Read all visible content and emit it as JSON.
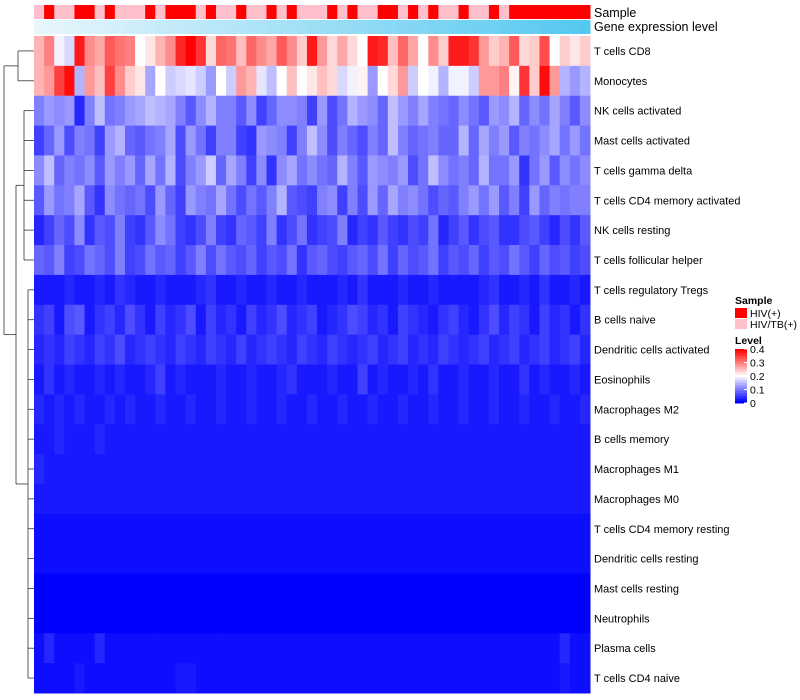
{
  "chart_data": {
    "type": "heatmap",
    "annotation_bars": {
      "sample_label": "Sample",
      "expression_label": "Gene expression level"
    },
    "rows": [
      "T cells CD8",
      "Monocytes",
      "NK cells activated",
      "Mast cells activated",
      "T cells gamma delta",
      "T cells CD4 memory activated",
      "NK cells resting",
      "T cells follicular helper",
      "T cells regulatory  Tregs",
      "B cells naive",
      "Dendritic cells activated",
      "Eosinophils",
      "Macrophages M2",
      "B cells memory",
      "Macrophages M1",
      "Macrophages M0",
      "T cells CD4 memory resting",
      "Dendritic cells resting",
      "Mast cells resting",
      "Neutrophils",
      "Plasma cells",
      "T cells CD4 naive"
    ],
    "sample_groups": [
      "HIV(+)",
      "HIV/TB(+)"
    ],
    "sample_assignment": [
      1,
      0,
      1,
      1,
      0,
      0,
      1,
      0,
      1,
      1,
      1,
      0,
      1,
      0,
      0,
      0,
      1,
      0,
      1,
      1,
      0,
      1,
      1,
      0,
      1,
      0,
      1,
      1,
      1,
      0,
      1,
      0,
      1,
      1,
      0,
      0,
      1,
      0,
      1,
      0,
      1,
      1,
      0,
      1,
      1,
      0,
      1,
      0,
      0,
      0,
      0,
      0,
      0,
      0,
      0
    ],
    "values_range_note": "cell fractions",
    "values": [
      [
        0.26,
        0.3,
        0.19,
        0.17,
        0.38,
        0.29,
        0.27,
        0.33,
        0.31,
        0.3,
        0.2,
        0.22,
        0.26,
        0.29,
        0.37,
        0.4,
        0.36,
        0.23,
        0.32,
        0.31,
        0.25,
        0.32,
        0.29,
        0.27,
        0.33,
        0.29,
        0.24,
        0.38,
        0.28,
        0.23,
        0.27,
        0.23,
        0.2,
        0.38,
        0.37,
        0.25,
        0.32,
        0.27,
        0.2,
        0.29,
        0.24,
        0.38,
        0.38,
        0.36,
        0.28,
        0.24,
        0.26,
        0.33,
        0.23,
        0.24,
        0.34,
        0.2,
        0.24,
        0.22,
        0.24
      ],
      [
        0.26,
        0.28,
        0.35,
        0.39,
        0.14,
        0.28,
        0.25,
        0.35,
        0.29,
        0.24,
        0.22,
        0.13,
        0.2,
        0.16,
        0.17,
        0.18,
        0.16,
        0.12,
        0.2,
        0.16,
        0.28,
        0.26,
        0.18,
        0.15,
        0.2,
        0.25,
        0.2,
        0.22,
        0.25,
        0.23,
        0.17,
        0.19,
        0.21,
        0.12,
        0.2,
        0.23,
        0.28,
        0.16,
        0.2,
        0.19,
        0.14,
        0.19,
        0.19,
        0.16,
        0.28,
        0.28,
        0.3,
        0.21,
        0.36,
        0.24,
        0.39,
        0.28,
        0.14,
        0.12,
        0.14
      ],
      [
        0.1,
        0.12,
        0.11,
        0.12,
        0.03,
        0.1,
        0.15,
        0.09,
        0.1,
        0.12,
        0.13,
        0.15,
        0.14,
        0.13,
        0.1,
        0.07,
        0.11,
        0.14,
        0.1,
        0.1,
        0.07,
        0.11,
        0.05,
        0.08,
        0.11,
        0.11,
        0.1,
        0.05,
        0.12,
        0.06,
        0.09,
        0.14,
        0.12,
        0.11,
        0.08,
        0.15,
        0.12,
        0.1,
        0.13,
        0.1,
        0.09,
        0.08,
        0.11,
        0.09,
        0.07,
        0.12,
        0.11,
        0.14,
        0.08,
        0.11,
        0.09,
        0.13,
        0.1,
        0.07,
        0.11
      ],
      [
        0.05,
        0.08,
        0.12,
        0.06,
        0.1,
        0.09,
        0.05,
        0.12,
        0.14,
        0.08,
        0.07,
        0.09,
        0.1,
        0.13,
        0.06,
        0.12,
        0.09,
        0.05,
        0.1,
        0.1,
        0.05,
        0.04,
        0.12,
        0.11,
        0.1,
        0.05,
        0.1,
        0.15,
        0.11,
        0.06,
        0.1,
        0.08,
        0.06,
        0.1,
        0.08,
        0.15,
        0.1,
        0.08,
        0.09,
        0.1,
        0.08,
        0.08,
        0.14,
        0.08,
        0.13,
        0.1,
        0.12,
        0.07,
        0.1,
        0.09,
        0.11,
        0.13,
        0.09,
        0.12,
        0.09
      ],
      [
        0.11,
        0.15,
        0.08,
        0.1,
        0.09,
        0.11,
        0.07,
        0.12,
        0.1,
        0.12,
        0.08,
        0.13,
        0.09,
        0.14,
        0.06,
        0.1,
        0.12,
        0.16,
        0.08,
        0.13,
        0.1,
        0.05,
        0.11,
        0.04,
        0.11,
        0.13,
        0.09,
        0.11,
        0.09,
        0.08,
        0.14,
        0.1,
        0.07,
        0.12,
        0.11,
        0.1,
        0.12,
        0.06,
        0.09,
        0.15,
        0.11,
        0.09,
        0.1,
        0.08,
        0.14,
        0.09,
        0.09,
        0.12,
        0.04,
        0.09,
        0.12,
        0.07,
        0.11,
        0.09,
        0.11
      ],
      [
        0.07,
        0.12,
        0.09,
        0.1,
        0.13,
        0.07,
        0.04,
        0.11,
        0.09,
        0.08,
        0.09,
        0.06,
        0.12,
        0.08,
        0.05,
        0.12,
        0.1,
        0.09,
        0.13,
        0.09,
        0.06,
        0.09,
        0.07,
        0.1,
        0.14,
        0.07,
        0.06,
        0.05,
        0.1,
        0.11,
        0.05,
        0.1,
        0.06,
        0.12,
        0.08,
        0.13,
        0.1,
        0.11,
        0.09,
        0.06,
        0.08,
        0.07,
        0.1,
        0.12,
        0.09,
        0.12,
        0.07,
        0.1,
        0.05,
        0.12,
        0.08,
        0.1,
        0.09,
        0.1,
        0.1
      ],
      [
        0.03,
        0.05,
        0.08,
        0.06,
        0.11,
        0.04,
        0.07,
        0.06,
        0.1,
        0.05,
        0.04,
        0.07,
        0.11,
        0.09,
        0.05,
        0.04,
        0.06,
        0.1,
        0.05,
        0.04,
        0.08,
        0.07,
        0.05,
        0.1,
        0.04,
        0.06,
        0.09,
        0.04,
        0.05,
        0.06,
        0.1,
        0.03,
        0.05,
        0.04,
        0.07,
        0.05,
        0.04,
        0.06,
        0.05,
        0.09,
        0.03,
        0.05,
        0.07,
        0.04,
        0.06,
        0.07,
        0.04,
        0.04,
        0.06,
        0.07,
        0.05,
        0.03,
        0.06,
        0.04,
        0.07
      ],
      [
        0.08,
        0.07,
        0.1,
        0.05,
        0.06,
        0.09,
        0.08,
        0.06,
        0.1,
        0.05,
        0.06,
        0.09,
        0.07,
        0.08,
        0.05,
        0.07,
        0.1,
        0.06,
        0.09,
        0.07,
        0.06,
        0.08,
        0.05,
        0.07,
        0.06,
        0.09,
        0.04,
        0.07,
        0.08,
        0.06,
        0.05,
        0.07,
        0.08,
        0.06,
        0.09,
        0.05,
        0.08,
        0.06,
        0.07,
        0.09,
        0.05,
        0.07,
        0.06,
        0.08,
        0.05,
        0.07,
        0.06,
        0.09,
        0.07,
        0.05,
        0.08,
        0.06,
        0.07,
        0.05,
        0.06
      ],
      [
        0.02,
        0.02,
        0.02,
        0.03,
        0.02,
        0.02,
        0.03,
        0.02,
        0.04,
        0.03,
        0.02,
        0.02,
        0.03,
        0.02,
        0.02,
        0.02,
        0.03,
        0.04,
        0.02,
        0.02,
        0.03,
        0.02,
        0.02,
        0.03,
        0.02,
        0.02,
        0.03,
        0.02,
        0.02,
        0.02,
        0.03,
        0.02,
        0.04,
        0.02,
        0.02,
        0.02,
        0.03,
        0.02,
        0.02,
        0.03,
        0.02,
        0.02,
        0.02,
        0.02,
        0.03,
        0.04,
        0.02,
        0.02,
        0.03,
        0.02,
        0.04,
        0.02,
        0.02,
        0.03,
        0.02
      ],
      [
        0.04,
        0.05,
        0.02,
        0.06,
        0.07,
        0.02,
        0.04,
        0.05,
        0.03,
        0.06,
        0.04,
        0.02,
        0.05,
        0.03,
        0.04,
        0.06,
        0.02,
        0.05,
        0.03,
        0.04,
        0.02,
        0.05,
        0.03,
        0.04,
        0.06,
        0.03,
        0.04,
        0.05,
        0.02,
        0.03,
        0.04,
        0.06,
        0.05,
        0.03,
        0.04,
        0.02,
        0.05,
        0.04,
        0.03,
        0.02,
        0.04,
        0.05,
        0.03,
        0.02,
        0.04,
        0.06,
        0.03,
        0.05,
        0.04,
        0.02,
        0.05,
        0.03,
        0.04,
        0.02,
        0.04
      ],
      [
        0.03,
        0.04,
        0.03,
        0.05,
        0.04,
        0.03,
        0.05,
        0.04,
        0.06,
        0.03,
        0.04,
        0.05,
        0.04,
        0.03,
        0.05,
        0.04,
        0.03,
        0.05,
        0.04,
        0.03,
        0.05,
        0.03,
        0.04,
        0.05,
        0.04,
        0.03,
        0.05,
        0.04,
        0.03,
        0.05,
        0.04,
        0.03,
        0.04,
        0.05,
        0.03,
        0.04,
        0.05,
        0.03,
        0.04,
        0.03,
        0.05,
        0.04,
        0.03,
        0.04,
        0.05,
        0.03,
        0.04,
        0.05,
        0.03,
        0.04,
        0.05,
        0.03,
        0.04,
        0.05,
        0.03
      ],
      [
        0.02,
        0.04,
        0.02,
        0.03,
        0.02,
        0.02,
        0.03,
        0.02,
        0.03,
        0.02,
        0.02,
        0.03,
        0.05,
        0.02,
        0.03,
        0.02,
        0.02,
        0.02,
        0.03,
        0.02,
        0.02,
        0.03,
        0.02,
        0.02,
        0.03,
        0.04,
        0.02,
        0.02,
        0.02,
        0.03,
        0.02,
        0.02,
        0.05,
        0.02,
        0.03,
        0.02,
        0.02,
        0.03,
        0.02,
        0.04,
        0.02,
        0.02,
        0.03,
        0.02,
        0.02,
        0.03,
        0.02,
        0.02,
        0.04,
        0.02,
        0.03,
        0.02,
        0.02,
        0.03,
        0.02
      ],
      [
        0.03,
        0.02,
        0.03,
        0.02,
        0.03,
        0.02,
        0.02,
        0.03,
        0.02,
        0.03,
        0.02,
        0.02,
        0.03,
        0.02,
        0.02,
        0.03,
        0.02,
        0.02,
        0.03,
        0.02,
        0.02,
        0.03,
        0.02,
        0.02,
        0.03,
        0.02,
        0.02,
        0.03,
        0.02,
        0.02,
        0.03,
        0.02,
        0.02,
        0.03,
        0.02,
        0.02,
        0.03,
        0.02,
        0.02,
        0.03,
        0.02,
        0.02,
        0.03,
        0.02,
        0.02,
        0.03,
        0.02,
        0.02,
        0.03,
        0.02,
        0.02,
        0.03,
        0.02,
        0.02,
        0.03
      ],
      [
        0.02,
        0.02,
        0.03,
        0.02,
        0.02,
        0.02,
        0.03,
        0.02,
        0.02,
        0.02,
        0.02,
        0.02,
        0.02,
        0.02,
        0.02,
        0.02,
        0.02,
        0.02,
        0.02,
        0.02,
        0.02,
        0.02,
        0.02,
        0.02,
        0.02,
        0.02,
        0.02,
        0.02,
        0.02,
        0.02,
        0.02,
        0.02,
        0.02,
        0.02,
        0.02,
        0.02,
        0.02,
        0.02,
        0.02,
        0.02,
        0.02,
        0.02,
        0.02,
        0.02,
        0.02,
        0.02,
        0.02,
        0.02,
        0.02,
        0.02,
        0.02,
        0.02,
        0.02,
        0.02,
        0.02
      ],
      [
        0.03,
        0.02,
        0.02,
        0.02,
        0.02,
        0.02,
        0.02,
        0.02,
        0.02,
        0.02,
        0.02,
        0.02,
        0.02,
        0.02,
        0.02,
        0.02,
        0.02,
        0.02,
        0.02,
        0.02,
        0.02,
        0.02,
        0.02,
        0.02,
        0.02,
        0.02,
        0.02,
        0.02,
        0.02,
        0.02,
        0.02,
        0.02,
        0.02,
        0.02,
        0.02,
        0.02,
        0.02,
        0.02,
        0.02,
        0.02,
        0.02,
        0.02,
        0.02,
        0.02,
        0.02,
        0.02,
        0.02,
        0.02,
        0.02,
        0.02,
        0.02,
        0.02,
        0.02,
        0.02,
        0.02
      ],
      [
        0.02,
        0.02,
        0.02,
        0.02,
        0.02,
        0.02,
        0.02,
        0.02,
        0.02,
        0.02,
        0.02,
        0.02,
        0.02,
        0.02,
        0.02,
        0.02,
        0.02,
        0.02,
        0.02,
        0.02,
        0.02,
        0.02,
        0.02,
        0.02,
        0.02,
        0.02,
        0.02,
        0.02,
        0.02,
        0.02,
        0.02,
        0.02,
        0.02,
        0.02,
        0.02,
        0.02,
        0.02,
        0.02,
        0.02,
        0.02,
        0.02,
        0.02,
        0.02,
        0.02,
        0.02,
        0.02,
        0.02,
        0.02,
        0.02,
        0.02,
        0.02,
        0.02,
        0.02,
        0.02,
        0.02
      ],
      [
        0.01,
        0.01,
        0.01,
        0.01,
        0.01,
        0.01,
        0.01,
        0.01,
        0.01,
        0.01,
        0.01,
        0.01,
        0.01,
        0.01,
        0.01,
        0.01,
        0.01,
        0.01,
        0.01,
        0.01,
        0.01,
        0.01,
        0.01,
        0.01,
        0.01,
        0.01,
        0.01,
        0.01,
        0.01,
        0.01,
        0.01,
        0.01,
        0.01,
        0.01,
        0.01,
        0.01,
        0.01,
        0.01,
        0.01,
        0.01,
        0.01,
        0.01,
        0.01,
        0.01,
        0.01,
        0.01,
        0.01,
        0.01,
        0.01,
        0.01,
        0.01,
        0.01,
        0.01,
        0.01,
        0.01
      ],
      [
        0.01,
        0.01,
        0.01,
        0.01,
        0.01,
        0.01,
        0.01,
        0.01,
        0.01,
        0.01,
        0.01,
        0.01,
        0.01,
        0.01,
        0.01,
        0.01,
        0.01,
        0.01,
        0.01,
        0.01,
        0.01,
        0.01,
        0.01,
        0.01,
        0.01,
        0.01,
        0.01,
        0.01,
        0.01,
        0.01,
        0.01,
        0.01,
        0.01,
        0.01,
        0.01,
        0.01,
        0.01,
        0.01,
        0.01,
        0.01,
        0.01,
        0.01,
        0.01,
        0.01,
        0.01,
        0.01,
        0.01,
        0.01,
        0.01,
        0.01,
        0.01,
        0.01,
        0.01,
        0.01,
        0.01
      ],
      [
        0.0,
        0.0,
        0.0,
        0.0,
        0.0,
        0.0,
        0.0,
        0.0,
        0.0,
        0.0,
        0.0,
        0.0,
        0.0,
        0.0,
        0.0,
        0.0,
        0.0,
        0.0,
        0.0,
        0.0,
        0.0,
        0.0,
        0.0,
        0.0,
        0.0,
        0.0,
        0.0,
        0.0,
        0.0,
        0.0,
        0.0,
        0.0,
        0.0,
        0.0,
        0.0,
        0.0,
        0.0,
        0.0,
        0.0,
        0.0,
        0.0,
        0.0,
        0.0,
        0.0,
        0.0,
        0.0,
        0.0,
        0.0,
        0.0,
        0.0,
        0.0,
        0.0,
        0.0,
        0.0,
        0.0
      ],
      [
        0.0,
        0.0,
        0.0,
        0.0,
        0.0,
        0.0,
        0.0,
        0.0,
        0.0,
        0.0,
        0.0,
        0.0,
        0.0,
        0.0,
        0.0,
        0.0,
        0.0,
        0.0,
        0.0,
        0.0,
        0.0,
        0.0,
        0.0,
        0.0,
        0.0,
        0.0,
        0.0,
        0.0,
        0.0,
        0.0,
        0.0,
        0.0,
        0.0,
        0.0,
        0.0,
        0.0,
        0.0,
        0.0,
        0.0,
        0.0,
        0.0,
        0.0,
        0.0,
        0.0,
        0.0,
        0.0,
        0.0,
        0.0,
        0.0,
        0.0,
        0.0,
        0.0,
        0.0,
        0.0,
        0.0
      ],
      [
        0.01,
        0.03,
        0.01,
        0.01,
        0.01,
        0.01,
        0.03,
        0.01,
        0.01,
        0.01,
        0.01,
        0.01,
        0.01,
        0.01,
        0.01,
        0.01,
        0.01,
        0.01,
        0.01,
        0.01,
        0.01,
        0.01,
        0.01,
        0.01,
        0.01,
        0.01,
        0.01,
        0.01,
        0.01,
        0.01,
        0.01,
        0.01,
        0.01,
        0.01,
        0.01,
        0.01,
        0.01,
        0.01,
        0.01,
        0.01,
        0.01,
        0.01,
        0.01,
        0.01,
        0.01,
        0.01,
        0.01,
        0.01,
        0.01,
        0.01,
        0.01,
        0.01,
        0.03,
        0.01,
        0.01
      ],
      [
        0.01,
        0.01,
        0.01,
        0.01,
        0.02,
        0.01,
        0.01,
        0.01,
        0.01,
        0.01,
        0.01,
        0.01,
        0.01,
        0.01,
        0.02,
        0.02,
        0.01,
        0.01,
        0.01,
        0.01,
        0.01,
        0.01,
        0.01,
        0.01,
        0.01,
        0.01,
        0.01,
        0.01,
        0.01,
        0.01,
        0.01,
        0.01,
        0.01,
        0.01,
        0.01,
        0.01,
        0.01,
        0.01,
        0.01,
        0.01,
        0.01,
        0.01,
        0.01,
        0.01,
        0.01,
        0.01,
        0.01,
        0.01,
        0.01,
        0.01,
        0.01,
        0.01,
        0.02,
        0.01,
        0.01
      ]
    ],
    "colorscale": {
      "low": "#0000ff",
      "mid": "#ffffff",
      "high": "#ff0000",
      "vmin": 0,
      "vmax": 0.4,
      "ticks": [
        "0.4",
        "0.3",
        "0.2",
        "0.1",
        "0"
      ]
    },
    "legend": {
      "sample_title": "Sample",
      "sample_items": [
        {
          "label": "HIV(+)",
          "color": "#ff0000"
        },
        {
          "label": "HIV/TB(+)",
          "color": "#ffc0cb"
        }
      ],
      "level_title": "Level",
      "placement": "right"
    }
  }
}
